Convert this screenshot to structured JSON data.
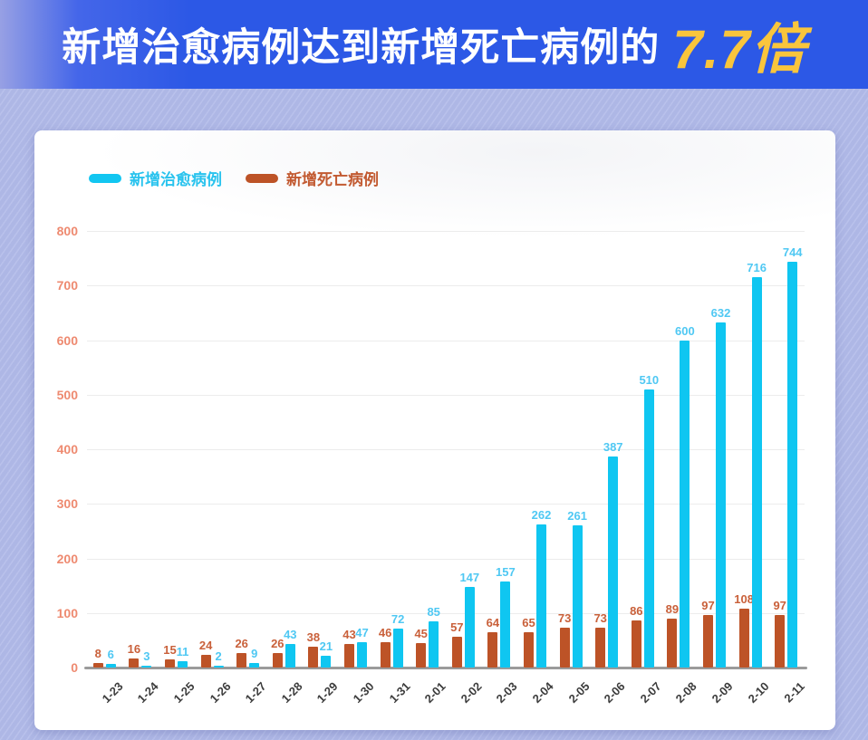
{
  "banner": {
    "title": "新增治愈病例达到新增死亡病例的",
    "highlight": "7.7倍",
    "bg_color": "#2c58e6",
    "title_color": "#ffffff",
    "highlight_color": "#f9c53c"
  },
  "legend": {
    "items": [
      {
        "label": "新增治愈病例",
        "color": "#12c6f1",
        "text_color": "#29c3ee"
      },
      {
        "label": "新增死亡病例",
        "color": "#bd5327",
        "text_color": "#c25a31"
      }
    ]
  },
  "chart_data": {
    "type": "bar",
    "title": "新增治愈病例达到新增死亡病例的 7.7倍",
    "categories": [
      "1-23",
      "1-24",
      "1-25",
      "1-26",
      "1-27",
      "1-28",
      "1-29",
      "1-30",
      "1-31",
      "2-01",
      "2-02",
      "2-03",
      "2-04",
      "2-05",
      "2-06",
      "2-07",
      "2-08",
      "2-09",
      "2-10",
      "2-11"
    ],
    "series": [
      {
        "name": "新增死亡病例",
        "color": "#bd5327",
        "label_color": "#c9603a",
        "values": [
          8,
          16,
          15,
          24,
          26,
          26,
          38,
          43,
          46,
          45,
          57,
          64,
          65,
          73,
          73,
          86,
          89,
          97,
          108,
          97
        ]
      },
      {
        "name": "新增治愈病例",
        "color": "#0fc6f1",
        "label_color": "#4fc8f3",
        "values": [
          6,
          3,
          11,
          2,
          9,
          43,
          21,
          47,
          72,
          85,
          147,
          157,
          262,
          261,
          387,
          510,
          600,
          632,
          716,
          744
        ]
      }
    ],
    "xlabel": "",
    "ylabel": "",
    "ylim": [
      0,
      800
    ],
    "ytick_step": 100,
    "yticks": [
      0,
      100,
      200,
      300,
      400,
      500,
      600,
      700,
      800
    ],
    "grid": true,
    "legend_position": "top-left",
    "bar_order_note": "death bar drawn left of cured bar in each pair",
    "yaxis_label_color": "#ee8a70",
    "xaxis_label_color": "#3c3c3c",
    "gridline_color": "#ececec",
    "axisline_color": "#9b9b9b"
  }
}
